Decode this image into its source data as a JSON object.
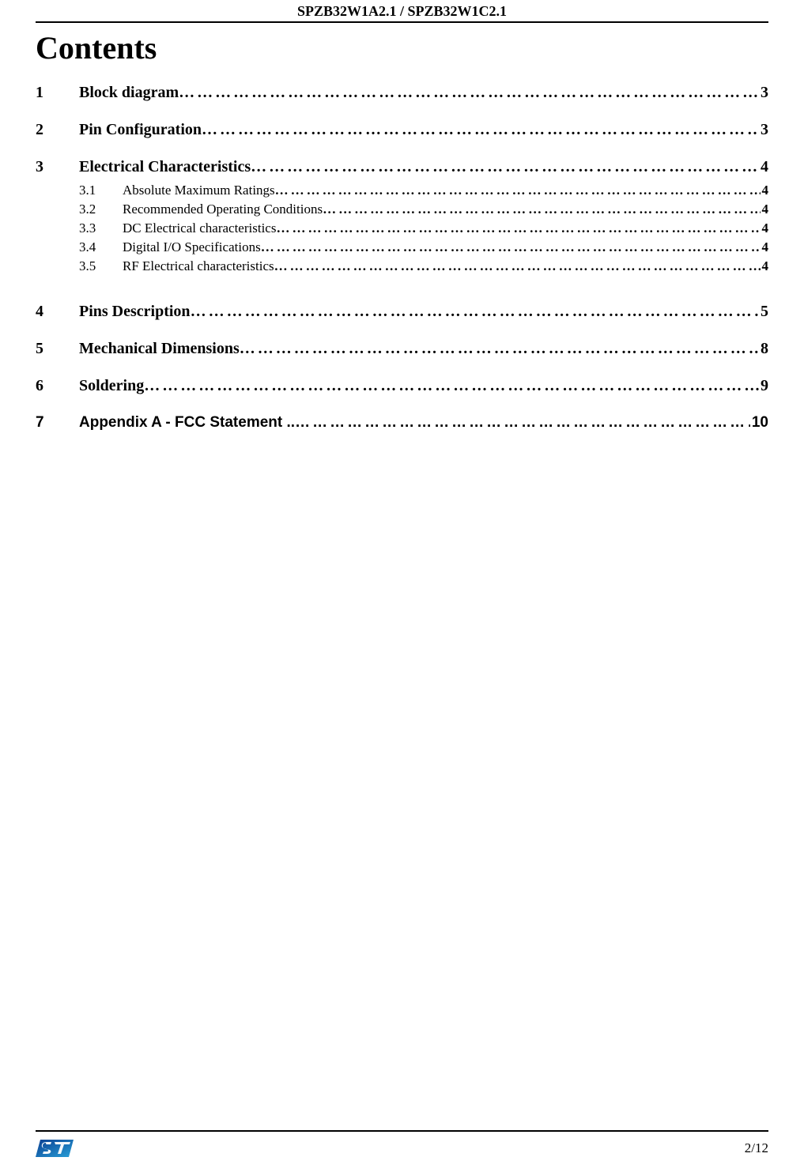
{
  "header": "SPZB32W1A2.1  / SPZB32W1C2.1",
  "title": "Contents",
  "toc": [
    {
      "num": "1",
      "label": "Block diagram ",
      "page": " 3",
      "subs": []
    },
    {
      "num": "2",
      "label": "Pin Configuration ",
      "page": "3",
      "subs": []
    },
    {
      "num": "3",
      "label": "Electrical Characteristics ",
      "page": "   4",
      "subs": [
        {
          "num": "3.1",
          "label": "Absolute Maximum Ratings ",
          "page": " 4"
        },
        {
          "num": "3.2",
          "label": "Recommended Operating  Conditions  ",
          "page": " 4"
        },
        {
          "num": "3.3",
          "label": "DC Electrical characteristics ",
          "page": " 4"
        },
        {
          "num": "3.4",
          "label": "Digital I/O   Specifications ",
          "page": " 4"
        },
        {
          "num": "3.5",
          "label": "RF Electrical characteristics ",
          "page": " 4"
        }
      ]
    },
    {
      "num": "4",
      "label": "Pins  Description   ",
      "page": "5",
      "subs": [],
      "extra_gap": true
    },
    {
      "num": "5",
      "label": "Mechanical Dimensions ",
      "page": " 8",
      "subs": []
    },
    {
      "num": "6",
      "label": "Soldering ",
      "page": " 9",
      "subs": []
    },
    {
      "num": "7",
      "label": "Appendix A - FCC Statement ..",
      "page": " 10",
      "subs": [],
      "font": "arial"
    }
  ],
  "dots_fill": "……………………………………………………………………………………………………………………………………",
  "footer_page": "2/12",
  "logo_colors": {
    "gradient_start": "#0b3e91",
    "gradient_end": "#28a0d8",
    "white": "#ffffff"
  }
}
